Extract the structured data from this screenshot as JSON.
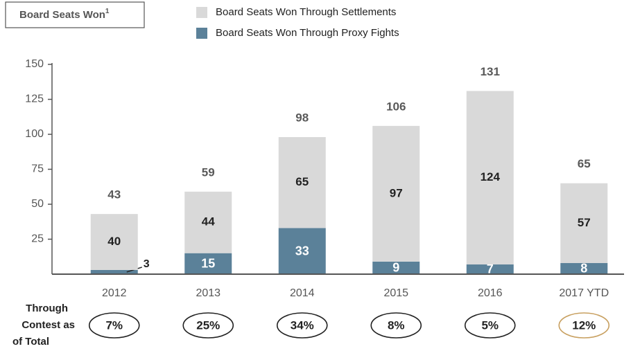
{
  "chart_data": {
    "type": "stacked-bar",
    "title": "Board Seats Won",
    "title_note": "1",
    "categories": [
      "2012",
      "2013",
      "2014",
      "2015",
      "2016",
      "2017 YTD"
    ],
    "series": [
      {
        "name": "Board Seats Won Through Proxy Fights",
        "color": "#5b8199",
        "values": [
          3,
          15,
          33,
          9,
          7,
          8
        ]
      },
      {
        "name": "Board Seats Won Through Settlements",
        "color": "#d9d9d9",
        "values": [
          40,
          44,
          65,
          97,
          124,
          57
        ]
      }
    ],
    "totals": [
      43,
      59,
      98,
      106,
      131,
      65
    ],
    "ylim": [
      0,
      150
    ],
    "yticks": [
      25,
      50,
      75,
      100,
      125,
      150
    ],
    "percent_row": {
      "lines": [
        "Through",
        "Contest as",
        "of Total"
      ],
      "values": [
        7,
        25,
        34,
        8,
        5,
        12
      ],
      "value_labels": [
        "7%",
        "25%",
        "34%",
        "8%",
        "5%",
        "12%"
      ]
    }
  }
}
